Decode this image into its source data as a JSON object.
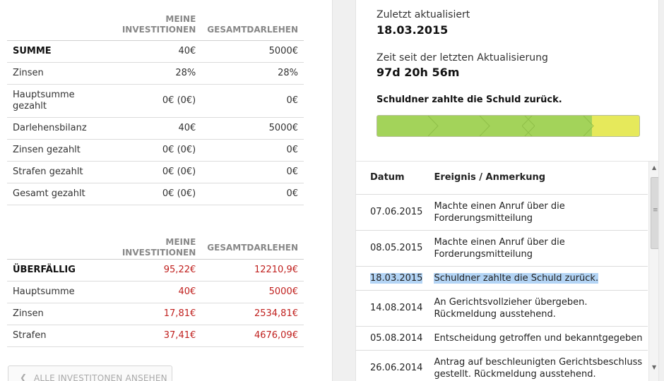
{
  "overview": {
    "headers": [
      "MEINE INVESTITIONEN",
      "GESAMTDARLEHEN"
    ],
    "rows": [
      {
        "label": "SUMME",
        "mine": "40€",
        "total": "5000€"
      },
      {
        "label": "Zinsen",
        "mine": "28%",
        "total": "28%"
      },
      {
        "label": "Hauptsumme gezahlt",
        "mine": "0€ (0€)",
        "total": "0€"
      },
      {
        "label": "Darlehensbilanz",
        "mine": "40€",
        "total": "5000€"
      },
      {
        "label": "Zinsen gezahlt",
        "mine": "0€ (0€)",
        "total": "0€"
      },
      {
        "label": "Strafen gezahlt",
        "mine": "0€ (0€)",
        "total": "0€"
      },
      {
        "label": "Gesamt gezahlt",
        "mine": "0€ (0€)",
        "total": "0€"
      }
    ]
  },
  "overdue": {
    "headers": [
      "MEINE INVESTITIONEN",
      "GESAMTDARLEHEN"
    ],
    "rows": [
      {
        "label": "ÜBERFÄLLIG",
        "mine": "95,22€",
        "total": "12210,9€"
      },
      {
        "label": "Hauptsumme",
        "mine": "40€",
        "total": "5000€"
      },
      {
        "label": "Zinsen",
        "mine": "17,81€",
        "total": "2534,81€"
      },
      {
        "label": "Strafen",
        "mine": "37,41€",
        "total": "4676,09€"
      }
    ]
  },
  "back_button": {
    "label": "ALLE INVESTITONEN ANSEHEN",
    "icon": "chevron-left-icon"
  },
  "status": {
    "last_updated_label": "Zuletzt aktualisiert",
    "last_updated_value": "18.03.2015",
    "since_label": "Zeit seit der letzten Aktualisierung",
    "since_value": "97d 20h 56m",
    "message": "Schuldner zahlte die Schuld zurück.",
    "progress_fraction": 0.82,
    "progress_colors": {
      "done": "#a3d35a",
      "remaining": "#e6e95b"
    }
  },
  "events": {
    "headers": {
      "date": "Datum",
      "event": "Ereignis / Anmerkung"
    },
    "rows": [
      {
        "date": "07.06.2015",
        "event": "Machte einen Anruf über die Forderungsmitteilung"
      },
      {
        "date": "08.05.2015",
        "event": "Machte einen Anruf über die Forderungsmitteilung"
      },
      {
        "date": "18.03.2015",
        "event": "Schuldner zahlte die Schuld zurück."
      },
      {
        "date": "14.08.2014",
        "event": "An Gerichtsvollzieher übergeben. Rückmeldung ausstehend."
      },
      {
        "date": "05.08.2014",
        "event": "Entscheidung getroffen und bekanntgegeben"
      },
      {
        "date": "26.06.2014",
        "event": "Antrag auf beschleunigten Gerichtsbeschluss gestellt. Rückmeldung ausstehend."
      }
    ]
  },
  "colors": {
    "overdue_red": "#c0201e",
    "selection": "#b3d4f5"
  }
}
